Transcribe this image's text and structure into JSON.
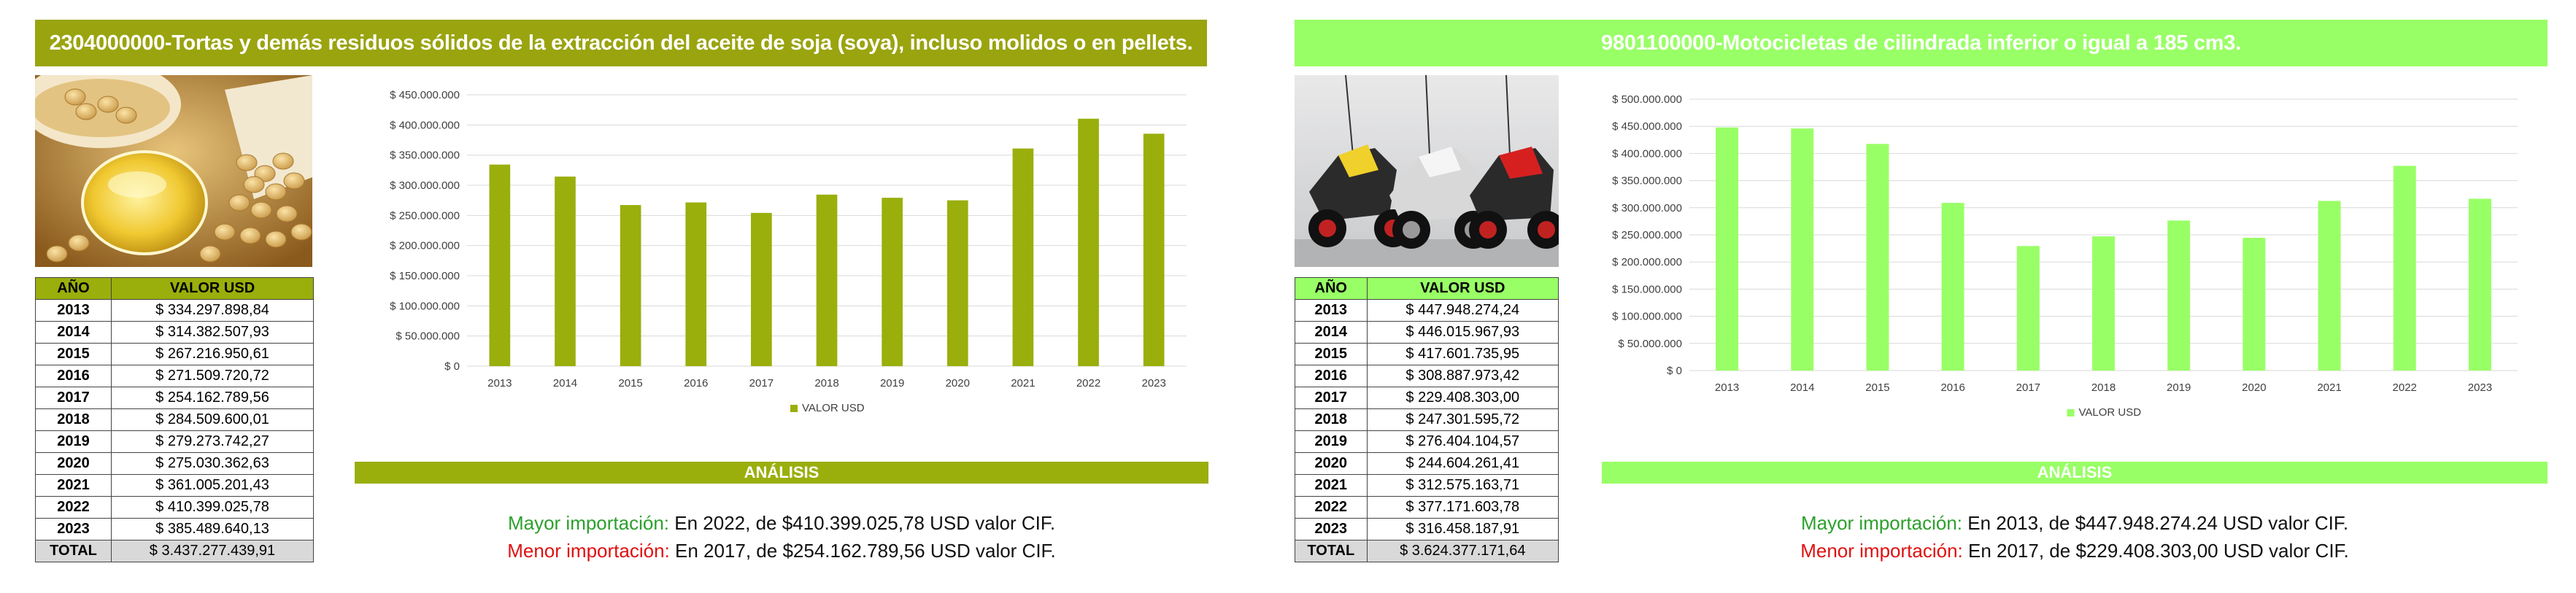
{
  "panels": [
    {
      "title": "2304000000-Tortas y demás residuos sólidos de la extracción del aceite de soja (soya), incluso molidos o en pellets.",
      "title_color": "#9aa40f",
      "bar_color": "#9aaf0c",
      "photo_icon": "soybeans-oil-photo",
      "table": {
        "header_year": "AÑO",
        "header_value": "VALOR USD",
        "header_color": "#9aaf0c",
        "rows": [
          {
            "year": "2013",
            "value": "$ 334.297.898,84"
          },
          {
            "year": "2014",
            "value": "$ 314.382.507,93"
          },
          {
            "year": "2015",
            "value": "$ 267.216.950,61"
          },
          {
            "year": "2016",
            "value": "$ 271.509.720,72"
          },
          {
            "year": "2017",
            "value": "$ 254.162.789,56"
          },
          {
            "year": "2018",
            "value": "$ 284.509.600,01"
          },
          {
            "year": "2019",
            "value": "$ 279.273.742,27"
          },
          {
            "year": "2020",
            "value": "$ 275.030.362,63"
          },
          {
            "year": "2021",
            "value": "$ 361.005.201,43"
          },
          {
            "year": "2022",
            "value": "$ 410.399.025,78"
          },
          {
            "year": "2023",
            "value": "$ 385.489.640,13"
          }
        ],
        "total_label": "TOTAL",
        "total_value": "$ 3.437.277.439,91"
      },
      "analysis_title": "ANÁLISIS",
      "analysis": {
        "max_label": "Mayor importación:",
        "max_text": " En 2022, de $410.399.025,78 USD valor CIF.",
        "min_label": "Menor importación:",
        "min_text": " En 2017, de $254.162.789,56 USD valor CIF."
      }
    },
    {
      "title": "9801100000-Motocicletas de cilindrada inferior o igual a 185 cm3.",
      "title_color": "#99ff66",
      "bar_color": "#99ff66",
      "photo_icon": "motorcycles-photo",
      "table": {
        "header_year": "AÑO",
        "header_value": "VALOR USD",
        "header_color": "#99ff66",
        "rows": [
          {
            "year": "2013",
            "value": "$ 447.948.274,24"
          },
          {
            "year": "2014",
            "value": "$ 446.015.967,93"
          },
          {
            "year": "2015",
            "value": "$ 417.601.735,95"
          },
          {
            "year": "2016",
            "value": "$ 308.887.973,42"
          },
          {
            "year": "2017",
            "value": "$ 229.408.303,00"
          },
          {
            "year": "2018",
            "value": "$ 247.301.595,72"
          },
          {
            "year": "2019",
            "value": "$ 276.404.104,57"
          },
          {
            "year": "2020",
            "value": "$ 244.604.261,41"
          },
          {
            "year": "2021",
            "value": "$ 312.575.163,71"
          },
          {
            "year": "2022",
            "value": "$ 377.171.603,78"
          },
          {
            "year": "2023",
            "value": "$ 316.458.187,91"
          }
        ],
        "total_label": "TOTAL",
        "total_value": "$ 3.624.377.171,64"
      },
      "analysis_title": "ANÁLISIS",
      "analysis": {
        "max_label": "Mayor importación:",
        "max_text": " En 2013, de $447.948.274.24 USD valor CIF.",
        "min_label": "Menor importación:",
        "min_text": " En 2017, de $229.408.303,00 USD valor CIF."
      }
    }
  ],
  "chart_data": [
    {
      "type": "bar",
      "categories": [
        "2013",
        "2014",
        "2015",
        "2016",
        "2017",
        "2018",
        "2019",
        "2020",
        "2021",
        "2022",
        "2023"
      ],
      "series": [
        {
          "name": "VALOR USD",
          "values": [
            334297898.84,
            314382507.93,
            267216950.61,
            271509720.72,
            254162789.56,
            284509600.01,
            279273742.27,
            275030362.63,
            361005201.43,
            410399025.78,
            385489640.13
          ]
        }
      ],
      "ylim": [
        0,
        450000000
      ],
      "yticks": [
        "$ 0",
        "$ 50.000.000",
        "$ 100.000.000",
        "$ 150.000.000",
        "$ 200.000.000",
        "$ 250.000.000",
        "$ 300.000.000",
        "$ 350.000.000",
        "$ 400.000.000",
        "$ 450.000.000"
      ],
      "grid": true,
      "legend": "bottom",
      "color": "#9aaf0c"
    },
    {
      "type": "bar",
      "categories": [
        "2013",
        "2014",
        "2015",
        "2016",
        "2017",
        "2018",
        "2019",
        "2020",
        "2021",
        "2022",
        "2023"
      ],
      "series": [
        {
          "name": "VALOR USD",
          "values": [
            447948274.24,
            446015967.93,
            417601735.95,
            308887973.42,
            229408303.0,
            247301595.72,
            276404104.57,
            244604261.41,
            312575163.71,
            377171603.78,
            316458187.91
          ]
        }
      ],
      "ylim": [
        0,
        500000000
      ],
      "yticks": [
        "$ 0",
        "$ 50.000.000",
        "$ 100.000.000",
        "$ 150.000.000",
        "$ 200.000.000",
        "$ 250.000.000",
        "$ 300.000.000",
        "$ 350.000.000",
        "$ 400.000.000",
        "$ 450.000.000",
        "$ 500.000.000"
      ],
      "grid": true,
      "legend": "bottom",
      "color": "#99ff66"
    }
  ]
}
